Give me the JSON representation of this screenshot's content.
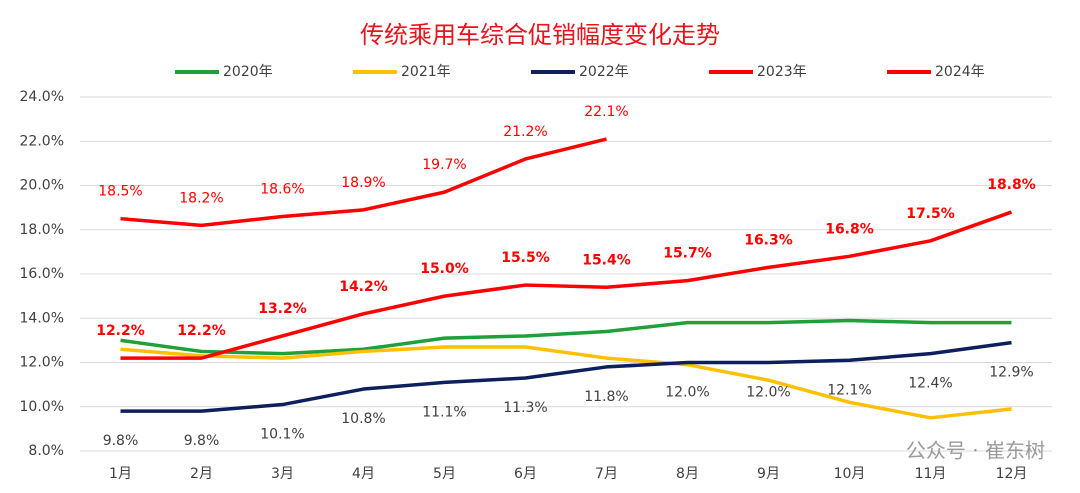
{
  "chart_data": {
    "type": "line",
    "title": "传统乘用车综合促销幅度变化走势",
    "watermark": "公众号 · 崔东树",
    "categories": [
      "1月",
      "2月",
      "3月",
      "4月",
      "5月",
      "6月",
      "7月",
      "8月",
      "9月",
      "10月",
      "11月",
      "12月"
    ],
    "series": [
      {
        "name": "2020年",
        "color": "#1fa038",
        "values": [
          13.0,
          12.5,
          12.4,
          12.6,
          13.1,
          13.2,
          13.4,
          13.8,
          13.8,
          13.9,
          13.8,
          13.8
        ]
      },
      {
        "name": "2021年",
        "color": "#ffc000",
        "values": [
          12.6,
          12.3,
          12.2,
          12.5,
          12.7,
          12.7,
          12.2,
          11.9,
          11.2,
          10.2,
          9.5,
          9.9
        ]
      },
      {
        "name": "2022年",
        "color": "#0d1f5c",
        "values": [
          9.8,
          9.8,
          10.1,
          10.8,
          11.1,
          11.3,
          11.8,
          12.0,
          12.0,
          12.1,
          12.4,
          12.9
        ],
        "value_labels": [
          "9.8%",
          "9.8%",
          "10.1%",
          "10.8%",
          "11.1%",
          "11.3%",
          "11.8%",
          "12.0%",
          "12.0%",
          "12.1%",
          "12.4%",
          "12.9%"
        ]
      },
      {
        "name": "2023年",
        "color": "#ff0000",
        "values": [
          12.2,
          12.2,
          13.2,
          14.2,
          15.0,
          15.5,
          15.4,
          15.7,
          16.3,
          16.8,
          17.5,
          18.8
        ],
        "value_labels": [
          "12.2%",
          "12.2%",
          "13.2%",
          "14.2%",
          "15.0%",
          "15.5%",
          "15.4%",
          "15.7%",
          "16.3%",
          "16.8%",
          "17.5%",
          "18.8%"
        ]
      },
      {
        "name": "2024年",
        "color": "#ff0000",
        "values": [
          18.5,
          18.2,
          18.6,
          18.9,
          19.7,
          21.2,
          22.1,
          null,
          null,
          null,
          null,
          null
        ],
        "value_labels": [
          "18.5%",
          "18.2%",
          "18.6%",
          "18.9%",
          "19.7%",
          "21.2%",
          "22.1%",
          null,
          null,
          null,
          null,
          null
        ]
      }
    ],
    "ylim": [
      8,
      24
    ],
    "yticks": [
      {
        "value": 8,
        "label": "8.0%"
      },
      {
        "value": 10,
        "label": "10.0%"
      },
      {
        "value": 12,
        "label": "12.0%"
      },
      {
        "value": 14,
        "label": "14.0%"
      },
      {
        "value": 16,
        "label": "16.0%"
      },
      {
        "value": 18,
        "label": "18.0%"
      },
      {
        "value": 20,
        "label": "20.0%"
      },
      {
        "value": 22,
        "label": "22.0%"
      },
      {
        "value": 24,
        "label": "24.0%"
      }
    ],
    "grid": true,
    "legend": "top"
  }
}
